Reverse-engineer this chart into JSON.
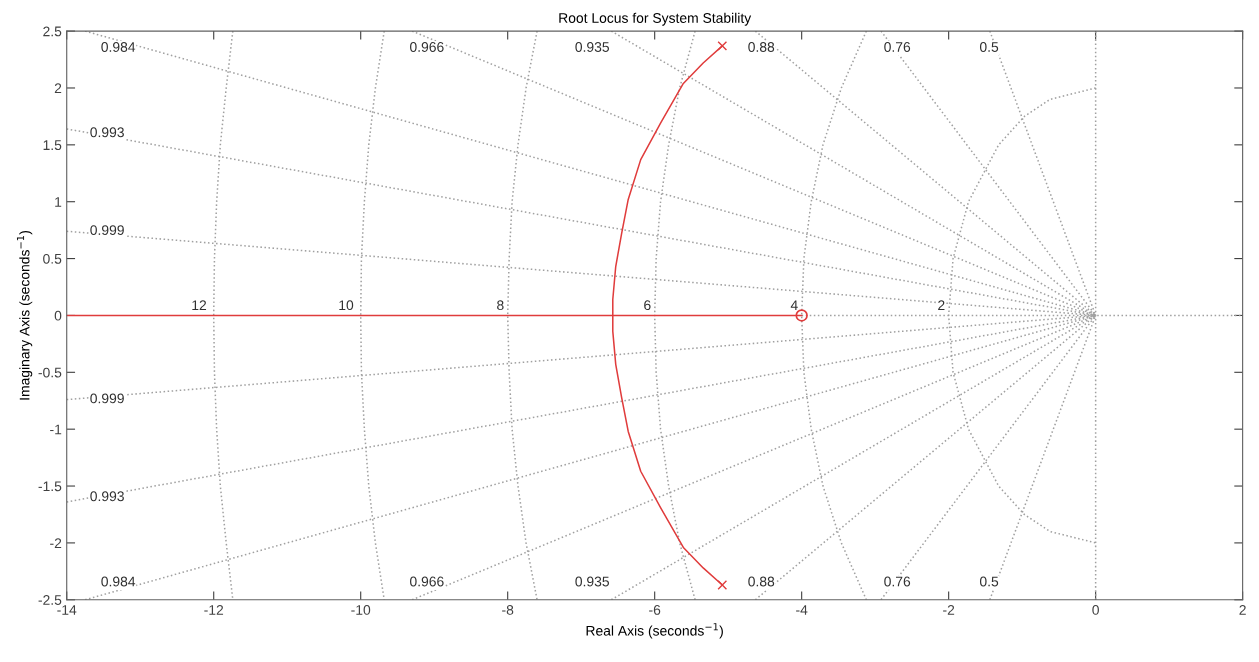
{
  "chart_data": {
    "type": "line",
    "title": "Root Locus for System Stability",
    "xlabel": "Real Axis (seconds$^{−1}$)",
    "ylabel": "Imaginary Axis (seconds$^{−1}$)",
    "xlim": [
      -14,
      2
    ],
    "ylim": [
      -2.5,
      2.5
    ],
    "xticks": [
      -14,
      -12,
      -10,
      -8,
      -6,
      -4,
      -2,
      0,
      2
    ],
    "yticks": [
      -2.5,
      -2,
      -1.5,
      -1,
      -0.5,
      0,
      0.5,
      1,
      1.5,
      2,
      2.5
    ],
    "grid": false,
    "series": [
      {
        "line_style": "dotted",
        "color": "#a0a0a0",
        "x": [
          -1.44,
          0
        ],
        "values": [
          2.5,
          0
        ]
      },
      {
        "line_style": "dotted",
        "color": "#a0a0a0",
        "x": [
          -2.92,
          0
        ],
        "values": [
          2.5,
          0
        ]
      },
      {
        "line_style": "dotted",
        "color": "#a0a0a0",
        "x": [
          -4.63,
          0
        ],
        "values": [
          2.5,
          0
        ]
      },
      {
        "line_style": "dotted",
        "color": "#a0a0a0",
        "x": [
          -6.59,
          0
        ],
        "values": [
          2.5,
          0
        ]
      },
      {
        "line_style": "dotted",
        "color": "#a0a0a0",
        "x": [
          -9.3,
          0
        ],
        "values": [
          2.5,
          0
        ]
      },
      {
        "line_style": "dotted",
        "color": "#a0a0a0",
        "x": [
          -13.75,
          0
        ],
        "values": [
          2.5,
          0
        ]
      },
      {
        "line_style": "dotted",
        "color": "#a0a0a0",
        "x": [
          -14,
          0
        ],
        "values": [
          1.64,
          0
        ]
      },
      {
        "line_style": "dotted",
        "color": "#a0a0a0",
        "x": [
          -14,
          0
        ],
        "values": [
          0.74,
          0
        ]
      },
      {
        "line_style": "dotted",
        "color": "#a0a0a0",
        "x": [
          -1.44,
          0
        ],
        "values": [
          -2.5,
          0
        ]
      },
      {
        "line_style": "dotted",
        "color": "#a0a0a0",
        "x": [
          -2.92,
          0
        ],
        "values": [
          -2.5,
          0
        ]
      },
      {
        "line_style": "dotted",
        "color": "#a0a0a0",
        "x": [
          -4.63,
          0
        ],
        "values": [
          -2.5,
          0
        ]
      },
      {
        "line_style": "dotted",
        "color": "#a0a0a0",
        "x": [
          -6.59,
          0
        ],
        "values": [
          -2.5,
          0
        ]
      },
      {
        "line_style": "dotted",
        "color": "#a0a0a0",
        "x": [
          -9.3,
          0
        ],
        "values": [
          -2.5,
          0
        ]
      },
      {
        "line_style": "dotted",
        "color": "#a0a0a0",
        "x": [
          -13.75,
          0
        ],
        "values": [
          -2.5,
          0
        ]
      },
      {
        "line_style": "dotted",
        "color": "#a0a0a0",
        "x": [
          -14,
          0
        ],
        "values": [
          -1.64,
          0
        ]
      },
      {
        "line_style": "dotted",
        "color": "#a0a0a0",
        "x": [
          -14,
          0
        ],
        "values": [
          -0.74,
          0
        ]
      },
      {
        "line_style": "dotted",
        "color": "#a0a0a0",
        "x": [
          -4,
          2
        ],
        "values": [
          0,
          0
        ]
      },
      {
        "line_style": "dotted",
        "color": "#a0a0a0",
        "x": [
          0,
          0
        ],
        "values": [
          -2.5,
          2.5
        ]
      },
      {
        "line_style": "dotted",
        "color": "#a0a0a0",
        "x": [
          0,
          -0.62,
          -0.97,
          -1.32,
          -1.73,
          -1.94,
          -2,
          -1.94,
          -1.73,
          -1.32,
          -0.97,
          -0.62,
          0
        ],
        "values": [
          2,
          1.9,
          1.75,
          1.5,
          1,
          0.5,
          0,
          -0.5,
          -1,
          -1.5,
          -1.75,
          -1.9,
          -2
        ]
      },
      {
        "line_style": "dotted",
        "color": "#a0a0a0",
        "x": [
          -3.12,
          -3.46,
          -3.71,
          -3.87,
          -3.97,
          -4,
          -3.97,
          -3.87,
          -3.71,
          -3.46,
          -3.12
        ],
        "values": [
          2.5,
          2,
          1.5,
          1,
          0.5,
          0,
          -0.5,
          -1,
          -1.5,
          -2,
          -2.5
        ]
      },
      {
        "line_style": "dotted",
        "color": "#a0a0a0",
        "x": [
          -5.45,
          -5.66,
          -5.81,
          -5.92,
          -5.98,
          -6,
          -5.98,
          -5.92,
          -5.81,
          -5.66,
          -5.45
        ],
        "values": [
          2.5,
          2,
          1.5,
          1,
          0.5,
          0,
          -0.5,
          -1,
          -1.5,
          -2,
          -2.5
        ]
      },
      {
        "line_style": "dotted",
        "color": "#a0a0a0",
        "x": [
          -7.6,
          -7.75,
          -7.86,
          -7.94,
          -7.98,
          -8,
          -7.98,
          -7.94,
          -7.86,
          -7.75,
          -7.6
        ],
        "values": [
          2.5,
          2,
          1.5,
          1,
          0.5,
          0,
          -0.5,
          -1,
          -1.5,
          -2,
          -2.5
        ]
      },
      {
        "line_style": "dotted",
        "color": "#a0a0a0",
        "x": [
          -9.68,
          -9.8,
          -9.89,
          -9.95,
          -9.99,
          -10,
          -9.99,
          -9.95,
          -9.89,
          -9.8,
          -9.68
        ],
        "values": [
          2.5,
          2,
          1.5,
          1,
          0.5,
          0,
          -0.5,
          -1,
          -1.5,
          -2,
          -2.5
        ]
      },
      {
        "line_style": "dotted",
        "color": "#a0a0a0",
        "x": [
          -11.74,
          -11.83,
          -11.91,
          -11.96,
          -11.99,
          -12,
          -11.99,
          -11.96,
          -11.91,
          -11.83,
          -11.74
        ],
        "values": [
          2.5,
          2,
          1.5,
          1,
          0.5,
          0,
          -0.5,
          -1,
          -1.5,
          -2,
          -2.5
        ]
      },
      {
        "line_style": "solid",
        "color": "#e03c3c",
        "x": [
          -5.08,
          -5.34,
          -5.61,
          -5.92,
          -6.19,
          -6.36,
          -6.45,
          -6.53,
          -6.57,
          -6.57,
          -6.53,
          -6.45,
          -6.36,
          -6.19,
          -5.92,
          -5.61,
          -5.34,
          -5.08
        ],
        "values": [
          2.37,
          2.22,
          2.04,
          1.69,
          1.37,
          1.02,
          0.72,
          0.43,
          0.14,
          -0.14,
          -0.43,
          -0.72,
          -1.02,
          -1.37,
          -1.69,
          -2.04,
          -2.22,
          -2.37
        ]
      },
      {
        "line_style": "solid",
        "color": "#e03c3c",
        "x": [
          -14,
          -4
        ],
        "values": [
          0,
          0
        ]
      },
      {
        "type": "scatter",
        "marker": "cross",
        "color": "#e03c3c",
        "x": [
          -5.08,
          -5.08
        ],
        "values": [
          2.37,
          -2.37
        ]
      },
      {
        "type": "scatter",
        "marker": "circle",
        "color": "#e03c3c",
        "x": [
          -4
        ],
        "values": [
          0
        ]
      }
    ],
    "annotations": [
      {
        "text": "0.984",
        "x": -13.3,
        "y": 2.35
      },
      {
        "text": "0.966",
        "x": -9.1,
        "y": 2.35
      },
      {
        "text": "0.935",
        "x": -6.85,
        "y": 2.35
      },
      {
        "text": "0.88",
        "x": -4.55,
        "y": 2.35
      },
      {
        "text": "0.76",
        "x": -2.7,
        "y": 2.35
      },
      {
        "text": "0.5",
        "x": -1.45,
        "y": 2.35
      },
      {
        "text": "0.993",
        "x": -13.45,
        "y": 1.6
      },
      {
        "text": "0.999",
        "x": -13.45,
        "y": 0.74
      },
      {
        "text": "0.999",
        "x": -13.45,
        "y": -0.74
      },
      {
        "text": "0.993",
        "x": -13.45,
        "y": -1.6
      },
      {
        "text": "0.984",
        "x": -13.3,
        "y": -2.35
      },
      {
        "text": "0.966",
        "x": -9.1,
        "y": -2.35
      },
      {
        "text": "0.935",
        "x": -6.85,
        "y": -2.35
      },
      {
        "text": "0.88",
        "x": -4.55,
        "y": -2.35
      },
      {
        "text": "0.76",
        "x": -2.7,
        "y": -2.35
      },
      {
        "text": "0.5",
        "x": -1.45,
        "y": -2.35
      },
      {
        "text": "12",
        "x": -12.2,
        "y": 0.08
      },
      {
        "text": "10",
        "x": -10.2,
        "y": 0.08
      },
      {
        "text": "8",
        "x": -8.1,
        "y": 0.08
      },
      {
        "text": "6",
        "x": -6.1,
        "y": 0.08
      },
      {
        "text": "4",
        "x": -4.1,
        "y": 0.08
      },
      {
        "text": "2",
        "x": -2.1,
        "y": 0.08
      }
    ]
  }
}
